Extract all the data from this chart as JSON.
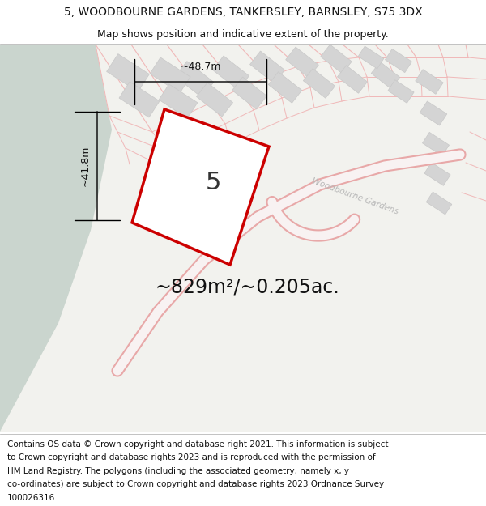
{
  "title_line1": "5, WOODBOURNE GARDENS, TANKERSLEY, BARNSLEY, S75 3DX",
  "title_line2": "Map shows position and indicative extent of the property.",
  "footer_lines": [
    "Contains OS data © Crown copyright and database right 2021. This information is subject",
    "to Crown copyright and database rights 2023 and is reproduced with the permission of",
    "HM Land Registry. The polygons (including the associated geometry, namely x, y",
    "co-ordinates) are subject to Crown copyright and database rights 2023 Ordnance Survey",
    "100026316."
  ],
  "area_text": "~829m²/~0.205ac.",
  "label_5": "5",
  "dim_width": "~48.7m",
  "dim_height": "~41.8m",
  "road_label": "Woodbourne Gardens",
  "bg_green": "#cad5ce",
  "bg_light": "#f2f2ee",
  "plot_fill": "#ffffff",
  "plot_edge": "#cc0000",
  "plot_edge_width": 2.5,
  "building_fill": "#d4d4d4",
  "building_edge": "#c8c8c8",
  "road_color": "#e8a8a8",
  "road_fill": "#f8f2f2",
  "plot_line_color": "#f0b8b8",
  "text_color": "#111111",
  "road_text_color": "#b8b8b8",
  "title_fontsize": 10,
  "subtitle_fontsize": 9,
  "footer_fontsize": 7.5,
  "area_fontsize": 17,
  "label_fontsize": 22,
  "dim_fontsize": 9,
  "road_fontsize": 7.5
}
